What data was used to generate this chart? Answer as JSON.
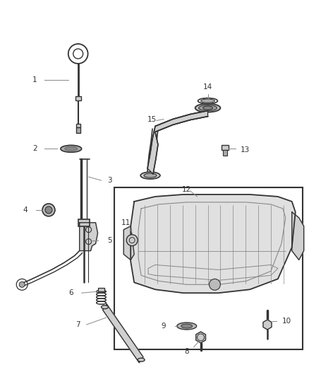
{
  "background_color": "#ffffff",
  "line_color": "#555555",
  "dark_color": "#333333",
  "gray_color": "#888888",
  "light_gray": "#cccccc",
  "fig_width": 4.38,
  "fig_height": 5.33,
  "dpi": 100,
  "label_fontsize": 7.5
}
